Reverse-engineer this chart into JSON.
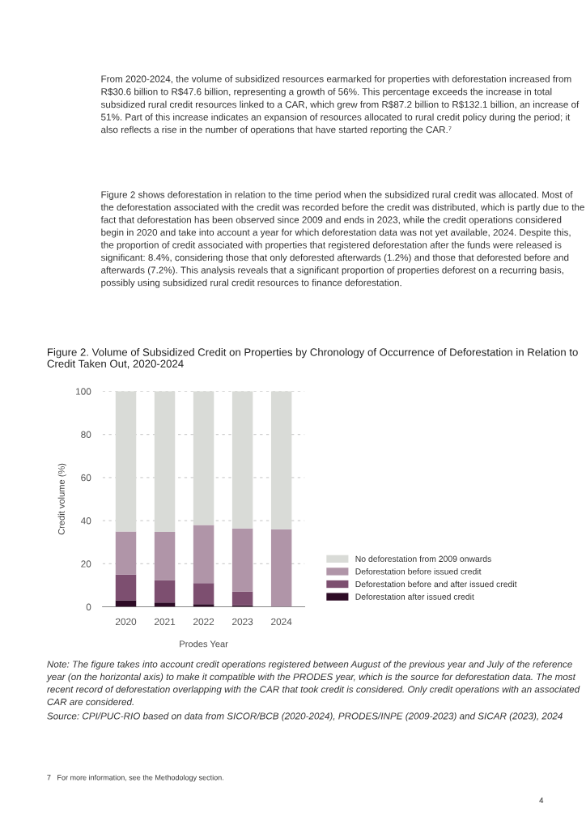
{
  "chart_data": {
    "type": "bar",
    "stacked": true,
    "title": "Figure 2. Volume of Subsidized Credit on Properties by Chronology of Occurrence of Deforestation in Relation to Credit Taken Out, 2020-2024",
    "xlabel": "Prodes Year",
    "ylabel": "Credit volume (%)",
    "categories": [
      "2020",
      "2021",
      "2022",
      "2023",
      "2024"
    ],
    "series": [
      {
        "name": "Deforestation after issued credit",
        "color": "#2e0c26",
        "values": [
          3,
          2,
          1.2,
          0.7,
          0
        ]
      },
      {
        "name": "Deforestation before and after issued credit",
        "color": "#7d4f70",
        "values": [
          12,
          10.4,
          9.8,
          6.4,
          0
        ]
      },
      {
        "name": "Deforestation before issued credit",
        "color": "#b095a8",
        "values": [
          20,
          22.4,
          27,
          29.3,
          36
        ]
      },
      {
        "name": "No deforestation from 2009 onwards",
        "color": "#d9dbd7",
        "values": [
          65,
          65.2,
          62,
          63.6,
          64
        ]
      }
    ],
    "ylim": [
      0,
      100
    ],
    "yticks": [
      0,
      20,
      40,
      60,
      80,
      100
    ],
    "grid": "y",
    "legend": "right",
    "annotations": [
      "From 2020-2024, the volume of subsidized resources earmarked for properties with deforestation increased from R$30.6 billion to R$47.6 billion, representing a growth of 56%. This percentage exceeds the increase in total subsidized rural credit resources linked to a CAR, which grew from R$87.2 billion to R$132.1 billion, an increase of 51%. Part of this increase indicates an expansion of resources allocated to rural credit policy during the period; it also reflects a rise in the number of operations that have started reporting the CAR.⁷",
      "Figure 2 shows deforestation in relation to the time period when the subsidized rural credit was allocated. Most of the deforestation associated with the credit was recorded before the credit was distributed, which is partly due to the fact that deforestation has been observed since 2009 and ends in 2023, while the credit operations considered begin in 2020 and take into account a year for which deforestation data was not yet available, 2024. Despite this, the proportion of credit associated with properties that registered deforestation after the funds were released is significant: 8.4%, considering those that only deforested afterwards (1.2%) and those that deforested before and afterwards (7.2%). This analysis reveals that a significant proportion of properties deforest on a recurring basis, possibly using subsidized rural credit resources to finance deforestation.",
      "Note: The figure takes into account credit operations registered between August of the previous year and July of the reference year (on the horizontal axis) to make it compatible with the PRODES year, which is the source for deforestation data. The most recent record of deforestation overlapping with the CAR that took credit is considered. Only credit operations with an associated CAR are considered.",
      "Source: CPI/PUC-RIO based on data from SICOR/BCB (2020-2024), PRODES/INPE (2009-2023) and SICAR (2023), 2024",
      "7   For more information, see the Methodology section.",
      "4"
    ]
  }
}
